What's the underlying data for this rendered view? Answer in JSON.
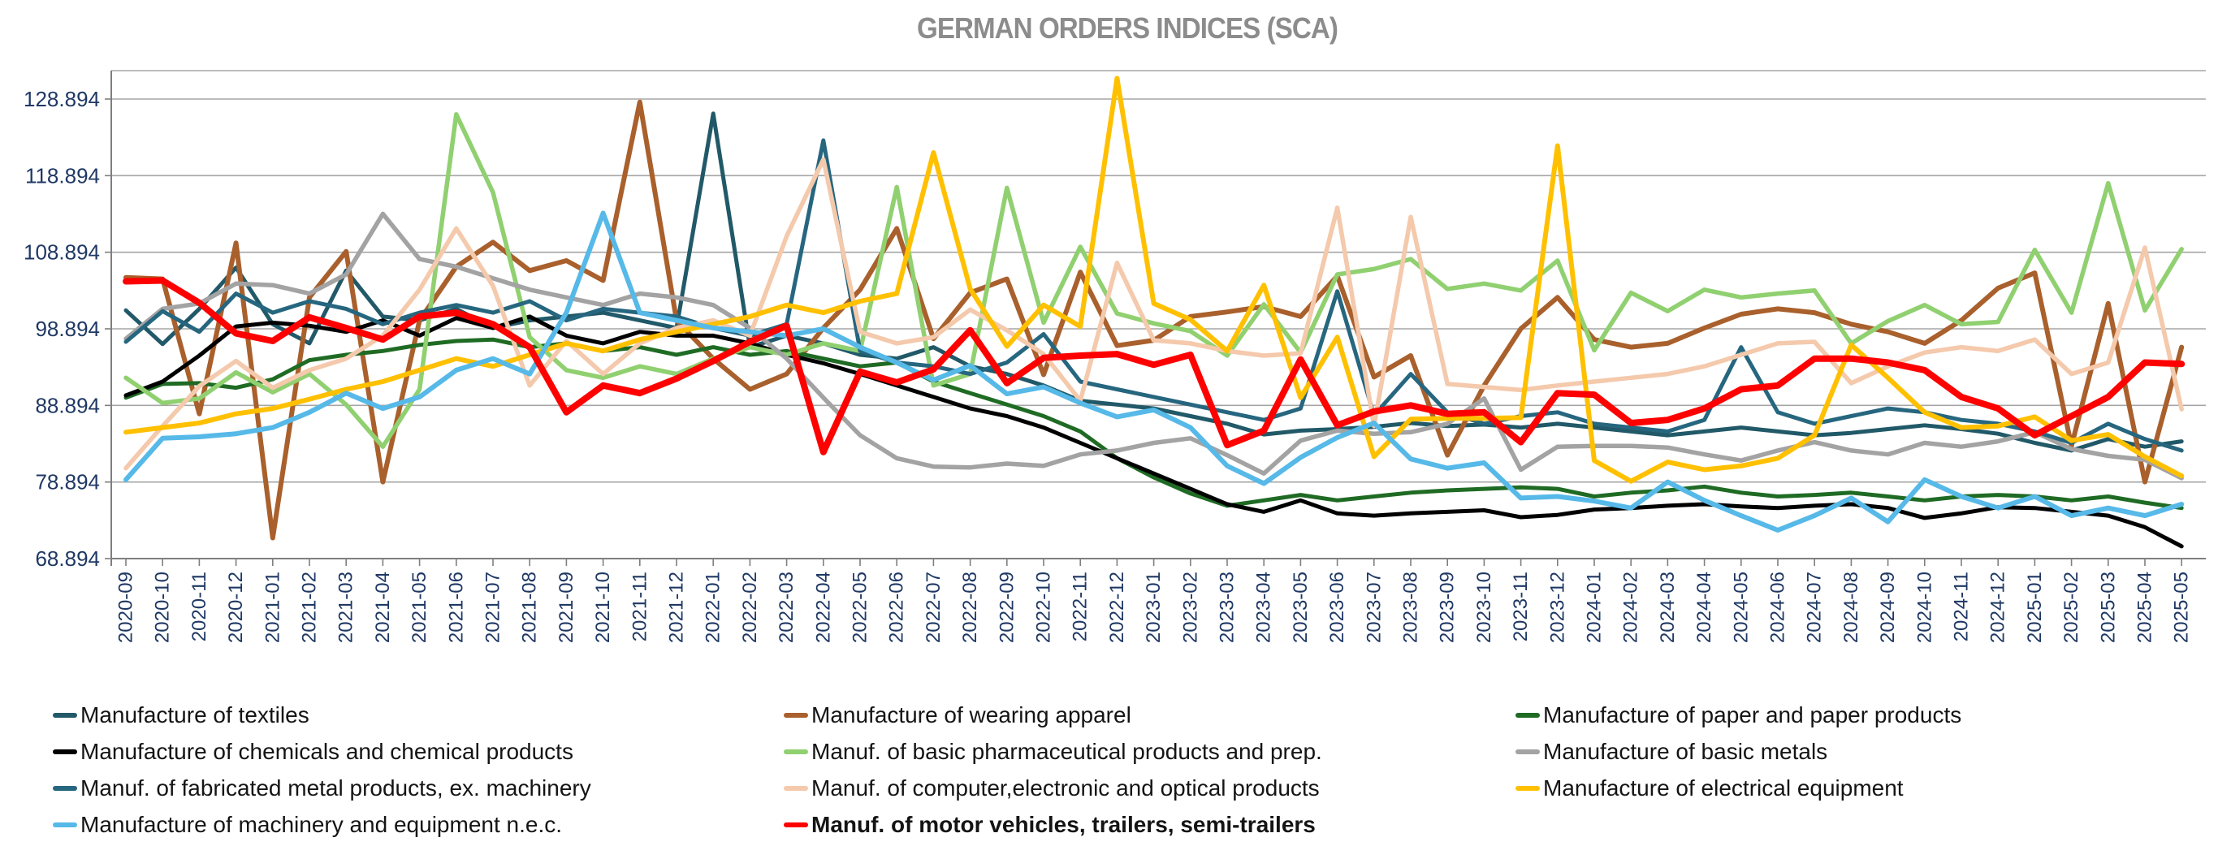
{
  "title": "GERMAN ORDERS INDICES (SCA)",
  "axis": {
    "y_tick_labels": [
      "128.894",
      "118.894",
      "108.894",
      "98.894",
      "88.894",
      "78.894",
      "68.894"
    ],
    "y_tick_values": [
      128.894,
      118.894,
      108.894,
      98.894,
      88.894,
      78.894,
      68.894
    ],
    "label_color": "#1F3864",
    "grid_color": "#A6A6A6",
    "axis_color": "#7F7F7F"
  },
  "chart_data": {
    "type": "line",
    "title": "GERMAN ORDERS INDICES (SCA)",
    "xlabel": "",
    "ylabel": "",
    "ylim": [
      68.894,
      132.6
    ],
    "grid": true,
    "legend_position": "bottom",
    "x_labels": [
      "2020-09",
      "2020-10",
      "2020-11",
      "2020-12",
      "2021-01",
      "2021-02",
      "2021-03",
      "2021-04",
      "2021-05",
      "2021-06",
      "2021-07",
      "2021-08",
      "2021-09",
      "2021-10",
      "2021-11",
      "2021-12",
      "2022-01",
      "2022-02",
      "2022-03",
      "2022-04",
      "2022-05",
      "2022-06",
      "2022-07",
      "2022-08",
      "2022-09",
      "2022-10",
      "2022-11",
      "2022-12",
      "2023-01",
      "2023-02",
      "2023-03",
      "2023-04",
      "2023-05",
      "2023-06",
      "2023-07",
      "2023-08",
      "2023-09",
      "2023-10",
      "2023-11",
      "2023-12",
      "2024-01",
      "2024-02",
      "2024-03",
      "2024-04",
      "2024-05",
      "2024-06",
      "2024-07",
      "2024-08",
      "2024-09",
      "2024-10",
      "2024-11",
      "2024-12",
      "2025-01",
      "2025-02",
      "2025-03",
      "2025-04",
      "2025-05"
    ],
    "series": [
      {
        "name": "Manufacture of textiles",
        "color": "#215968",
        "width": 5,
        "bold": false,
        "values": [
          101.3,
          96.9,
          101.5,
          106.9,
          99.5,
          97.0,
          106.5,
          100.5,
          100.0,
          101.5,
          99.0,
          100.0,
          100.5,
          101.0,
          100.0,
          99.0,
          127.0,
          96.5,
          98.0,
          97.0,
          95.5,
          95.0,
          96.5,
          94.0,
          93.0,
          91.5,
          89.5,
          89.0,
          88.5,
          87.5,
          86.5,
          85.1,
          85.6,
          85.8,
          86.1,
          86.6,
          86.2,
          86.4,
          86.0,
          86.5,
          86.0,
          85.5,
          85.0,
          85.5,
          86.0,
          85.5,
          85.0,
          85.3,
          85.8,
          86.3,
          85.8,
          85.2,
          84.0,
          83.0,
          84.5,
          83.5,
          84.2
        ]
      },
      {
        "name": "Manufacture of wearing apparel",
        "color": "#A9602C",
        "width": 6,
        "bold": false,
        "values": [
          105.6,
          105.4,
          87.8,
          110.1,
          71.6,
          103.0,
          109.0,
          78.9,
          100.0,
          107.0,
          110.2,
          106.5,
          107.8,
          105.2,
          128.5,
          100.0,
          95.0,
          91.0,
          93.0,
          99.0,
          104.0,
          112.0,
          97.6,
          103.6,
          105.4,
          92.9,
          106.3,
          96.7,
          97.4,
          100.5,
          101.1,
          101.8,
          100.5,
          105.8,
          92.6,
          95.4,
          82.4,
          91.5,
          98.9,
          103.0,
          97.5,
          96.5,
          97.0,
          99.0,
          100.8,
          101.5,
          101.0,
          99.5,
          98.5,
          97.0,
          100.0,
          104.2,
          106.2,
          83.6,
          102.2,
          78.9,
          96.5
        ]
      },
      {
        "name": "Manufacture of paper and paper products",
        "color": "#1F6B24",
        "width": 5,
        "bold": false,
        "values": [
          89.9,
          91.7,
          91.8,
          91.2,
          92.3,
          94.8,
          95.5,
          96.0,
          96.8,
          97.3,
          97.5,
          96.5,
          97.0,
          96.0,
          96.5,
          95.5,
          96.5,
          95.5,
          96.0,
          95.0,
          94.0,
          94.5,
          92.0,
          90.5,
          89.0,
          87.5,
          85.5,
          82.0,
          79.5,
          77.4,
          75.8,
          76.5,
          77.2,
          76.5,
          77.0,
          77.5,
          77.8,
          78.0,
          78.2,
          78.0,
          77.0,
          77.5,
          77.8,
          78.3,
          77.5,
          77.0,
          77.2,
          77.5,
          77.0,
          76.5,
          77.0,
          77.2,
          77.0,
          76.5,
          77.0,
          76.2,
          75.5
        ]
      },
      {
        "name": "Manufacture of chemicals and chemical products",
        "color": "#000000",
        "width": 5,
        "bold": false,
        "values": [
          90.2,
          92.0,
          95.4,
          99.2,
          99.7,
          99.3,
          98.5,
          100.0,
          98.0,
          100.3,
          99.0,
          100.5,
          98.0,
          97.0,
          98.5,
          98.0,
          98.0,
          97.0,
          95.5,
          94.4,
          93.0,
          91.5,
          90.0,
          88.5,
          87.5,
          86.0,
          84.0,
          82.0,
          80.0,
          78.0,
          76.0,
          75.0,
          76.5,
          74.8,
          74.5,
          74.8,
          75.0,
          75.2,
          74.3,
          74.6,
          75.3,
          75.5,
          75.8,
          76.0,
          75.7,
          75.5,
          75.8,
          76.0,
          75.5,
          74.2,
          74.8,
          75.6,
          75.5,
          75.0,
          74.5,
          73.0,
          70.5
        ]
      },
      {
        "name": "Manuf. of basic pharmaceutical products and prep.",
        "color": "#90D070",
        "width": 5.5,
        "bold": false,
        "values": [
          92.5,
          89.2,
          89.8,
          93.2,
          90.6,
          93.0,
          89.0,
          83.5,
          91.0,
          126.9,
          116.7,
          97.8,
          93.5,
          92.5,
          94.0,
          93.0,
          95.0,
          96.5,
          95.5,
          97.0,
          96.0,
          117.4,
          91.5,
          93.0,
          117.3,
          99.7,
          109.6,
          100.9,
          99.6,
          98.6,
          95.4,
          102.1,
          95.8,
          106.0,
          106.7,
          108.0,
          104.1,
          104.8,
          103.9,
          107.8,
          96.1,
          103.6,
          101.2,
          104.0,
          103.0,
          103.5,
          103.9,
          97.0,
          99.9,
          102.0,
          99.5,
          99.8,
          109.2,
          101.0,
          117.9,
          101.3,
          109.3
        ]
      },
      {
        "name": "Manufacture of basic metals",
        "color": "#A3A3A3",
        "width": 5.5,
        "bold": false,
        "values": [
          97.6,
          101.5,
          102.2,
          104.8,
          104.6,
          103.5,
          106.0,
          113.9,
          108.0,
          107.0,
          105.5,
          104.0,
          103.0,
          102.0,
          103.5,
          103.0,
          102.0,
          99.0,
          95.0,
          89.9,
          85.0,
          82.0,
          80.9,
          80.8,
          81.3,
          81.0,
          82.5,
          83.0,
          84.0,
          84.6,
          82.4,
          80.0,
          84.3,
          85.6,
          85.2,
          85.4,
          86.5,
          89.8,
          80.5,
          83.5,
          83.6,
          83.6,
          83.4,
          82.5,
          81.7,
          83.0,
          84.1,
          83.0,
          82.5,
          84.0,
          83.5,
          84.2,
          85.4,
          83.2,
          82.3,
          81.8,
          79.4
        ]
      },
      {
        "name": "Manuf. of fabricated metal products, ex. machinery",
        "color": "#26667F",
        "width": 5,
        "bold": false,
        "values": [
          97.2,
          101.2,
          98.5,
          103.5,
          101.0,
          102.5,
          101.5,
          99.5,
          101.0,
          102.0,
          101.0,
          102.5,
          100.0,
          101.5,
          101.0,
          100.5,
          99.0,
          98.0,
          99.5,
          123.5,
          96.0,
          94.5,
          94.0,
          93.0,
          94.5,
          98.2,
          92.0,
          91.0,
          90.0,
          89.0,
          88.0,
          87.0,
          88.5,
          103.8,
          87.6,
          93.0,
          88.0,
          86.5,
          87.5,
          88.0,
          86.5,
          86.0,
          85.5,
          87.0,
          96.5,
          88.0,
          86.5,
          87.5,
          88.5,
          88.0,
          87.0,
          86.5,
          85.5,
          84.0,
          86.5,
          84.5,
          83.0
        ]
      },
      {
        "name": "Manuf. of computer,electronic and optical products",
        "color": "#F4C9AC",
        "width": 5.5,
        "bold": false,
        "values": [
          80.7,
          86.2,
          91.4,
          94.7,
          91.2,
          93.5,
          95.0,
          98.0,
          104.0,
          112.0,
          104.5,
          91.5,
          97.3,
          93.0,
          97.0,
          99.0,
          100.0,
          98.0,
          111.0,
          121.0,
          98.5,
          97.0,
          97.8,
          101.4,
          98.7,
          95.6,
          89.5,
          107.5,
          97.4,
          97.0,
          96.0,
          95.4,
          95.7,
          114.7,
          86.2,
          113.5,
          91.7,
          91.3,
          90.9,
          91.5,
          92.0,
          92.5,
          93.0,
          94.0,
          95.5,
          97.0,
          97.2,
          91.8,
          94.0,
          95.8,
          96.5,
          96.0,
          97.5,
          93.0,
          94.5,
          109.5,
          88.4
        ]
      },
      {
        "name": "Manufacture of electrical equipment",
        "color": "#FFC000",
        "width": 6,
        "bold": false,
        "values": [
          85.4,
          86.0,
          86.6,
          87.8,
          88.5,
          89.7,
          91.0,
          92.0,
          93.5,
          95.0,
          94.0,
          95.5,
          97.0,
          96.0,
          97.5,
          98.5,
          99.5,
          100.5,
          102.0,
          101.0,
          102.5,
          103.5,
          121.9,
          104.1,
          96.6,
          102.0,
          99.2,
          131.6,
          102.2,
          100.1,
          96.0,
          104.6,
          89.9,
          97.8,
          82.2,
          87.1,
          87.2,
          87.2,
          87.3,
          122.8,
          81.7,
          79.0,
          81.5,
          80.5,
          81.0,
          82.0,
          85.0,
          96.8,
          92.5,
          88.0,
          86.0,
          86.2,
          87.4,
          84.3,
          85.1,
          82.2,
          79.7
        ]
      },
      {
        "name": "Manufacture of machinery and equipment n.e.c.",
        "color": "#56B9E8",
        "width": 6,
        "bold": false,
        "values": [
          79.2,
          84.6,
          84.8,
          85.2,
          86.0,
          88.0,
          90.5,
          88.5,
          90.0,
          93.5,
          95.0,
          93.0,
          101.0,
          114.0,
          101.0,
          100.0,
          99.0,
          98.5,
          98.0,
          98.9,
          96.5,
          94.5,
          92.2,
          94.1,
          90.4,
          91.3,
          89.2,
          87.4,
          88.3,
          86.0,
          81.0,
          78.7,
          82.1,
          84.7,
          86.6,
          81.9,
          80.7,
          81.4,
          76.8,
          77.0,
          76.4,
          75.5,
          78.9,
          76.5,
          74.5,
          72.6,
          74.5,
          76.8,
          73.7,
          79.2,
          77.0,
          75.5,
          77.0,
          74.5,
          75.5,
          74.5,
          76.0
        ]
      },
      {
        "name": "Manuf. of motor vehicles, trailers, semi-trailers",
        "color": "#FE0000",
        "width": 8,
        "bold": true,
        "values": [
          105.1,
          105.2,
          102.3,
          98.3,
          97.3,
          100.4,
          99.0,
          97.5,
          100.5,
          101.0,
          99.5,
          96.5,
          88.0,
          91.5,
          90.5,
          92.4,
          94.7,
          97.2,
          99.3,
          82.8,
          93.3,
          91.9,
          93.6,
          98.7,
          91.8,
          95.1,
          95.4,
          95.6,
          94.2,
          95.5,
          83.7,
          85.6,
          94.9,
          86.3,
          88.1,
          88.9,
          87.8,
          88.0,
          84.1,
          90.5,
          90.3,
          86.6,
          87.0,
          88.5,
          91.0,
          91.5,
          95.0,
          95.0,
          94.5,
          93.5,
          90.0,
          88.5,
          85.0,
          87.5,
          90.0,
          94.5,
          94.3
        ]
      }
    ],
    "legend_columns": [
      {
        "x": 65,
        "series": [
          0,
          3,
          6,
          9
        ]
      },
      {
        "x": 965,
        "series": [
          1,
          4,
          7,
          10
        ]
      },
      {
        "x": 1866,
        "series": [
          2,
          5,
          8
        ]
      }
    ]
  }
}
